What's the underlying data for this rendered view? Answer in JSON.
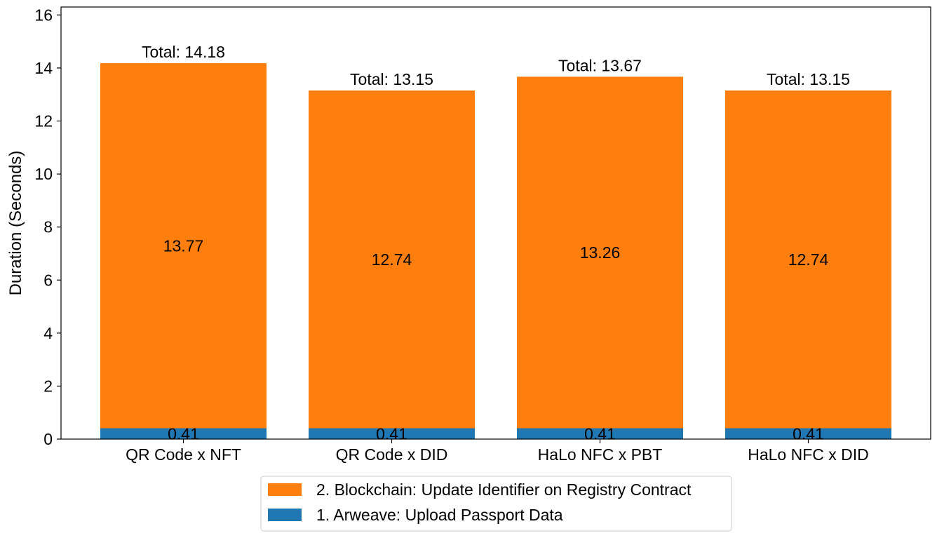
{
  "chart_data": {
    "type": "bar",
    "stacked": true,
    "title": "",
    "xlabel": "",
    "ylabel": "Duration (Seconds)",
    "ylim": [
      0,
      16.3
    ],
    "yticks": [
      "0",
      "2",
      "4",
      "6",
      "8",
      "10",
      "12",
      "14",
      "16"
    ],
    "grid": false,
    "legend_position": "bottom-center",
    "categories": [
      "QR Code x NFT",
      "QR Code x DID",
      "HaLo NFC x PBT",
      "HaLo NFC x DID"
    ],
    "series": [
      {
        "name": "1. Arweave: Upload Passport Data",
        "color": "#1f77b4",
        "values": [
          0.41,
          0.41,
          0.41,
          0.41
        ],
        "labels": [
          "0.41",
          "0.41",
          "0.41",
          "0.41"
        ]
      },
      {
        "name": "2. Blockchain: Update Identifier on Registry Contract",
        "color": "#ff7f0e",
        "values": [
          13.77,
          12.74,
          13.26,
          12.74
        ],
        "labels": [
          "13.77",
          "12.74",
          "13.26",
          "12.74"
        ]
      }
    ],
    "totals": [
      14.18,
      13.15,
      13.67,
      13.15
    ],
    "total_labels": [
      "Total: 14.18",
      "Total: 13.15",
      "Total: 13.67",
      "Total: 13.15"
    ]
  }
}
